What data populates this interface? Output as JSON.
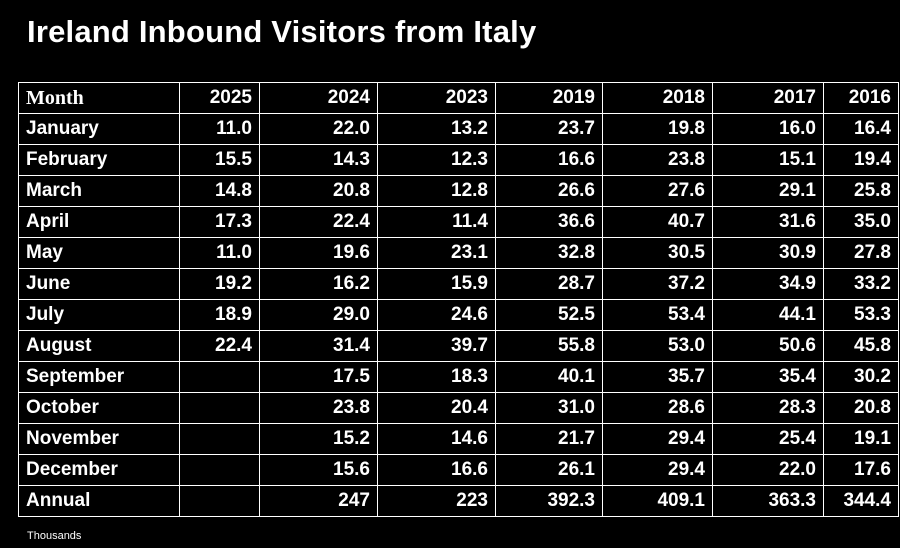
{
  "title": "Ireland Inbound Visitors from Italy",
  "footnote": "Thousands",
  "chart_data": {
    "type": "table",
    "title": "Ireland Inbound Visitors from Italy",
    "unit": "Thousands",
    "columns": [
      "Month",
      "2025",
      "2024",
      "2023",
      "2019",
      "2018",
      "2017",
      "2016"
    ],
    "rows": [
      [
        "January",
        "11.0",
        "22.0",
        "13.2",
        "23.7",
        "19.8",
        "16.0",
        "16.4"
      ],
      [
        "February",
        "15.5",
        "14.3",
        "12.3",
        "16.6",
        "23.8",
        "15.1",
        "19.4"
      ],
      [
        "March",
        "14.8",
        "20.8",
        "12.8",
        "26.6",
        "27.6",
        "29.1",
        "25.8"
      ],
      [
        "April",
        "17.3",
        "22.4",
        "11.4",
        "36.6",
        "40.7",
        "31.6",
        "35.0"
      ],
      [
        "May",
        "11.0",
        "19.6",
        "23.1",
        "32.8",
        "30.5",
        "30.9",
        "27.8"
      ],
      [
        "June",
        "19.2",
        "16.2",
        "15.9",
        "28.7",
        "37.2",
        "34.9",
        "33.2"
      ],
      [
        "July",
        "18.9",
        "29.0",
        "24.6",
        "52.5",
        "53.4",
        "44.1",
        "53.3"
      ],
      [
        "August",
        "22.4",
        "31.4",
        "39.7",
        "55.8",
        "53.0",
        "50.6",
        "45.8"
      ],
      [
        "September",
        "",
        "17.5",
        "18.3",
        "40.1",
        "35.7",
        "35.4",
        "30.2"
      ],
      [
        "October",
        "",
        "23.8",
        "20.4",
        "31.0",
        "28.6",
        "28.3",
        "20.8"
      ],
      [
        "November",
        "",
        "15.2",
        "14.6",
        "21.7",
        "29.4",
        "25.4",
        "19.1"
      ],
      [
        "December",
        "",
        "15.6",
        "16.6",
        "26.1",
        "29.4",
        "22.0",
        "17.6"
      ],
      [
        "Annual",
        "",
        "247",
        "223",
        "392.3",
        "409.1",
        "363.3",
        "344.4"
      ]
    ]
  }
}
